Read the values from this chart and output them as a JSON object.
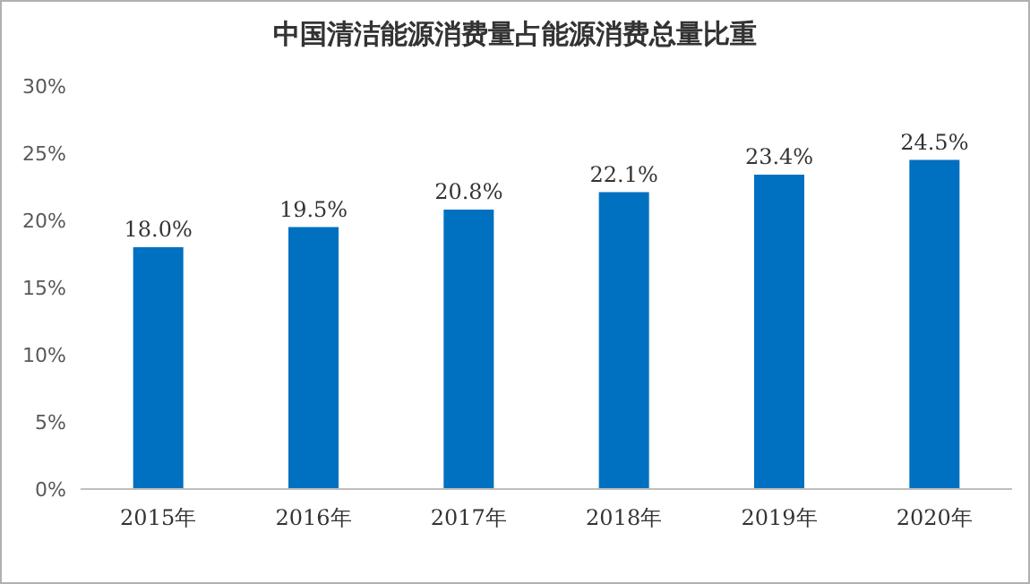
{
  "chart_data": {
    "type": "bar",
    "title": "中国清洁能源消费量占能源消费总量比重",
    "categories": [
      "2015年",
      "2016年",
      "2017年",
      "2018年",
      "2019年",
      "2020年"
    ],
    "values": [
      18.0,
      19.5,
      20.8,
      22.1,
      23.4,
      24.5
    ],
    "value_labels": [
      "18.0%",
      "19.5%",
      "20.8%",
      "22.1%",
      "23.4%",
      "24.5%"
    ],
    "color": "#0070c0",
    "ylim": [
      0,
      30
    ],
    "yticks": [
      {
        "value": 0,
        "label": "0%"
      },
      {
        "value": 5,
        "label": "5%"
      },
      {
        "value": 10,
        "label": "10%"
      },
      {
        "value": 15,
        "label": "15%"
      },
      {
        "value": 20,
        "label": "20%"
      },
      {
        "value": 25,
        "label": "25%"
      },
      {
        "value": 30,
        "label": "30%"
      }
    ],
    "grid": false
  }
}
